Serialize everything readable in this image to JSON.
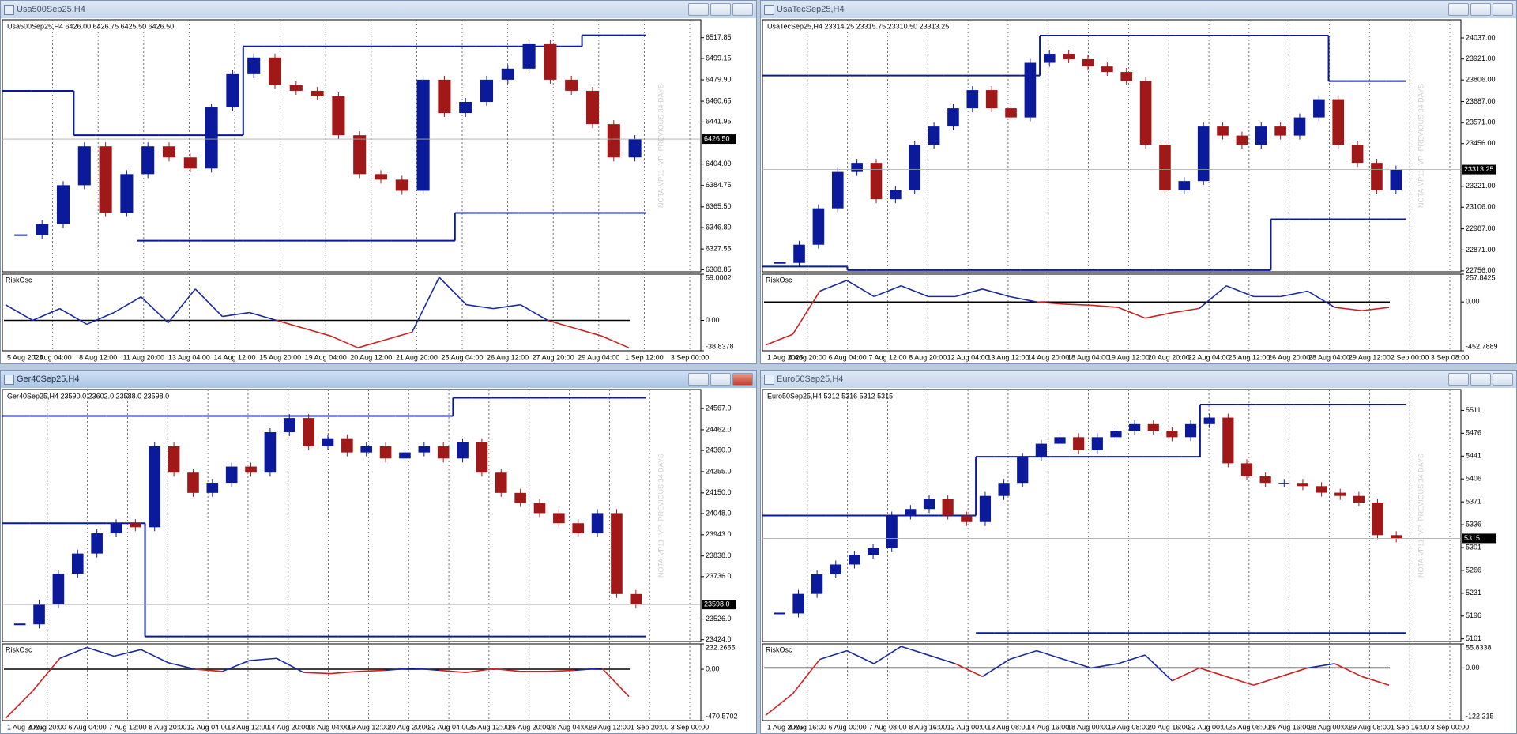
{
  "windows": [
    {
      "title": "Usa500Sep25,H4",
      "active": false,
      "chart_data": {
        "type": "candlestick",
        "header": "Usa500Sep25,H4  6426.00 6426.75 6425.50 6426.50",
        "up_color": "#0a1a9a",
        "down_color": "#a01818",
        "level_color": "#0a1a9a",
        "closes": [
          6340,
          6350,
          6385,
          6420,
          6360,
          6395,
          6420,
          6410,
          6400,
          6455,
          6485,
          6500,
          6475,
          6470,
          6465,
          6430,
          6395,
          6390,
          6380,
          6480,
          6450,
          6460,
          6480,
          6490,
          6512,
          6480,
          6470,
          6440,
          6410,
          6426.5
        ],
        "level_upper": [
          6470,
          6470,
          6470,
          6430,
          6430,
          6430,
          6430,
          6430,
          6430,
          6430,
          6430,
          6510,
          6510,
          6510,
          6510,
          6510,
          6510,
          6510,
          6510,
          6510,
          6510,
          6510,
          6510,
          6510,
          6510,
          6510,
          6510,
          6520,
          6520,
          6520
        ],
        "level_lower": [
          null,
          null,
          null,
          null,
          null,
          null,
          6335,
          6335,
          6335,
          6335,
          6335,
          6335,
          6335,
          6335,
          6335,
          6335,
          6335,
          6335,
          6335,
          6335,
          6335,
          6360,
          6360,
          6360,
          6360,
          6360,
          6360,
          6360,
          6360,
          6360
        ],
        "ylim": [
          6307,
          6534
        ],
        "yticks": [
          6308.85,
          6327.55,
          {
            "value": 6346.8,
            "label": "6346.80"
          },
          {
            "value": 6365.5,
            "label": "6365.50"
          },
          6384.75,
          {
            "value": 6404,
            "label": "6404.00"
          },
          6441.95,
          6460.65,
          {
            "value": 6479.9,
            "label": "6479.90"
          },
          6499.15,
          6517.85
        ],
        "price_label": {
          "value": 6426.5,
          "label": "6426.50"
        },
        "time_labels": [
          "5 Aug 2025",
          "7 Aug 04:00",
          "8 Aug 12:00",
          "11 Aug 20:00",
          "13 Aug 04:00",
          "14 Aug 12:00",
          "15 Aug 20:00",
          "19 Aug 04:00",
          "20 Aug 12:00",
          "21 Aug 20:00",
          "25 Aug 04:00",
          "26 Aug 12:00",
          "27 Aug 20:00",
          "29 Aug 04:00",
          "1 Sep 12:00",
          "3 Sep 00:00"
        ],
        "watermark": "NOTA-VP11 -VP- PREVIOUS 34 DAYS",
        "indicator": {
          "name": "RiskOsc",
          "values": [
            20,
            0,
            15,
            -5,
            10,
            30,
            -3,
            40,
            5,
            10,
            0,
            -10,
            -20,
            -35,
            -25,
            -15,
            55,
            20,
            15,
            20,
            0,
            -10,
            -20,
            -35
          ],
          "ylim": [
            -38.8378,
            59.0002
          ],
          "yticks": [
            59.0002,
            {
              "value": 0,
              "label": "0.00"
            },
            -38.8378
          ]
        }
      }
    },
    {
      "title": "UsaTecSep25,H4",
      "active": false,
      "chart_data": {
        "type": "candlestick",
        "header": "UsaTecSep25,H4  23314.25 23315.75 23310.50 23313.25",
        "up_color": "#0a1a9a",
        "down_color": "#a01818",
        "level_color": "#0a1a9a",
        "closes": [
          22800,
          22900,
          23100,
          23300,
          23350,
          23150,
          23200,
          23450,
          23550,
          23650,
          23750,
          23650,
          23600,
          23900,
          23950,
          23920,
          23880,
          23850,
          23800,
          23450,
          23200,
          23250,
          23550,
          23500,
          23450,
          23550,
          23500,
          23600,
          23700,
          23450,
          23350,
          23200,
          23313.25
        ],
        "level_upper": [
          23830,
          23830,
          23830,
          23830,
          23830,
          23830,
          23830,
          23830,
          23830,
          23830,
          23830,
          23830,
          23830,
          23830,
          24050,
          24050,
          24050,
          24050,
          24050,
          24050,
          24050,
          24050,
          24050,
          24050,
          24050,
          24050,
          24050,
          24050,
          24050,
          23800,
          23800,
          23800,
          23800
        ],
        "level_lower": [
          22780,
          22780,
          22780,
          22780,
          22760,
          22760,
          22760,
          22760,
          22760,
          22760,
          22760,
          22760,
          22760,
          22760,
          22760,
          22760,
          22760,
          22760,
          22760,
          22760,
          22760,
          22760,
          22760,
          22760,
          22760,
          22760,
          23040,
          23040,
          23040,
          23040,
          23040,
          23040,
          23040
        ],
        "ylim": [
          22751,
          24137
        ],
        "yticks": [
          {
            "value": 22756,
            "label": "22756.00"
          },
          {
            "value": 22871,
            "label": "22871.00"
          },
          {
            "value": 22987,
            "label": "22987.00"
          },
          {
            "value": 23106,
            "label": "23106.00"
          },
          {
            "value": 23221,
            "label": "23221.00"
          },
          {
            "value": 23456,
            "label": "23456.00"
          },
          {
            "value": 23571,
            "label": "23571.00"
          },
          {
            "value": 23687,
            "label": "23687.00"
          },
          {
            "value": 23806,
            "label": "23806.00"
          },
          {
            "value": 23921,
            "label": "23921.00"
          },
          {
            "value": 24037,
            "label": "24037.00"
          }
        ],
        "price_label": {
          "value": 23313.25,
          "label": "23313.25"
        },
        "time_labels": [
          "1 Aug 2025",
          "4 Aug 20:00",
          "6 Aug 04:00",
          "7 Aug 12:00",
          "8 Aug 20:00",
          "12 Aug 04:00",
          "13 Aug 12:00",
          "14 Aug 20:00",
          "18 Aug 04:00",
          "19 Aug 12:00",
          "20 Aug 20:00",
          "22 Aug 04:00",
          "25 Aug 12:00",
          "26 Aug 20:00",
          "28 Aug 04:00",
          "29 Aug 12:00",
          "2 Sep 00:00",
          "3 Sep 08:00"
        ],
        "watermark": "NOTA-VP11 -VP- PREVIOUS 34 DAYS",
        "indicator": {
          "name": "RiskOsc",
          "values": [
            -400,
            -300,
            100,
            200,
            50,
            150,
            50,
            50,
            120,
            50,
            0,
            -20,
            -30,
            -50,
            -150,
            -100,
            -60,
            150,
            50,
            50,
            100,
            -50,
            -80,
            -50
          ],
          "ylim": [
            -452.7889,
            257.8425
          ],
          "yticks": [
            257.8425,
            {
              "value": 0,
              "label": "0.00"
            },
            -452.7889
          ]
        }
      }
    },
    {
      "title": "Ger40Sep25,H4",
      "active": true,
      "chart_data": {
        "type": "candlestick",
        "header": "Ger40Sep25,H4  23590.0 23602.0 23588.0 23598.0",
        "up_color": "#0a1a9a",
        "down_color": "#a01818",
        "level_color": "#0a1a9a",
        "closes": [
          23500,
          23600,
          23750,
          23850,
          23950,
          24000,
          23980,
          24380,
          24250,
          24150,
          24200,
          24280,
          24250,
          24450,
          24520,
          24380,
          24420,
          24350,
          24380,
          24320,
          24350,
          24380,
          24320,
          24400,
          24250,
          24150,
          24100,
          24050,
          24000,
          23950,
          24050,
          23650,
          23598
        ],
        "level_upper": [
          24530,
          24530,
          24530,
          24530,
          24530,
          24530,
          24530,
          24530,
          24530,
          24530,
          24530,
          24530,
          24530,
          24530,
          24530,
          24530,
          24530,
          24530,
          24530,
          24530,
          24530,
          24530,
          24530,
          24620,
          24620,
          24620,
          24620,
          24620,
          24620,
          24620,
          24620,
          24620,
          24620
        ],
        "level_lower": [
          24000,
          24000,
          24000,
          24000,
          24000,
          24000,
          24000,
          23440,
          23440,
          23440,
          23440,
          23440,
          23440,
          23440,
          23440,
          23440,
          23440,
          23440,
          23440,
          23440,
          23440,
          23440,
          23440,
          23440,
          23440,
          23440,
          23440,
          23440,
          23440,
          23440,
          23440,
          23440,
          23440
        ],
        "ylim": [
          23415,
          24661
        ],
        "yticks": [
          {
            "value": 23424,
            "label": "23424.0"
          },
          {
            "value": 23526,
            "label": "23526.0"
          },
          {
            "value": 23736,
            "label": "23736.0"
          },
          {
            "value": 23838,
            "label": "23838.0"
          },
          {
            "value": 23943,
            "label": "23943.0"
          },
          {
            "value": 24048,
            "label": "24048.0"
          },
          {
            "value": 24150,
            "label": "24150.0"
          },
          {
            "value": 24255,
            "label": "24255.0"
          },
          {
            "value": 24360,
            "label": "24360.0"
          },
          {
            "value": 24462,
            "label": "24462.0"
          },
          {
            "value": 24567,
            "label": "24567.0"
          }
        ],
        "price_label": {
          "value": 23598,
          "label": "23598.0"
        },
        "time_labels": [
          "1 Aug 2025",
          "4 Aug 20:00",
          "6 Aug 04:00",
          "7 Aug 12:00",
          "8 Aug 20:00",
          "12 Aug 04:00",
          "13 Aug 12:00",
          "14 Aug 20:00",
          "18 Aug 04:00",
          "19 Aug 12:00",
          "20 Aug 20:00",
          "22 Aug 04:00",
          "25 Aug 12:00",
          "26 Aug 20:00",
          "28 Aug 04:00",
          "29 Aug 12:00",
          "1 Sep 20:00",
          "3 Sep 00:00"
        ],
        "watermark": "NOTA-VP11 -VP- PREVIOUS 34 DAYS",
        "indicator": {
          "name": "RiskOsc",
          "values": [
            -450,
            -200,
            100,
            200,
            120,
            180,
            60,
            0,
            -20,
            80,
            100,
            -30,
            -40,
            -20,
            -10,
            10,
            -10,
            -30,
            5,
            -20,
            -20,
            -10,
            10,
            -250
          ],
          "ylim": [
            -470.5702,
            232.2655
          ],
          "yticks": [
            232.2655,
            {
              "value": 0,
              "label": "0.00"
            },
            -470.5702
          ]
        }
      }
    },
    {
      "title": "Euro50Sep25,H4",
      "active": false,
      "chart_data": {
        "type": "candlestick",
        "header": "Euro50Sep25,H4  5312 5316 5312 5315",
        "up_color": "#0a1a9a",
        "down_color": "#a01818",
        "level_color": "#0a1a9a",
        "closes": [
          5200,
          5230,
          5260,
          5275,
          5290,
          5300,
          5350,
          5360,
          5375,
          5350,
          5340,
          5380,
          5400,
          5440,
          5460,
          5470,
          5450,
          5470,
          5480,
          5490,
          5480,
          5470,
          5490,
          5500,
          5430,
          5410,
          5400,
          5400,
          5395,
          5385,
          5380,
          5370,
          5320,
          5315
        ],
        "level_upper": [
          5350,
          5350,
          5350,
          5350,
          5350,
          5350,
          5350,
          5350,
          5350,
          5350,
          5350,
          5440,
          5440,
          5440,
          5440,
          5440,
          5440,
          5440,
          5440,
          5440,
          5440,
          5440,
          5440,
          5520,
          5520,
          5520,
          5520,
          5520,
          5520,
          5520,
          5520,
          5520,
          5520,
          5520
        ],
        "level_lower": [
          null,
          null,
          null,
          null,
          null,
          null,
          null,
          null,
          null,
          null,
          null,
          5170,
          5170,
          5170,
          5170,
          5170,
          5170,
          5170,
          5170,
          5170,
          5170,
          5170,
          5170,
          5170,
          5170,
          5170,
          5170,
          5170,
          5170,
          5170,
          5170,
          5170,
          5170,
          5170
        ],
        "ylim": [
          5157,
          5543
        ],
        "yticks": [
          5161,
          5196,
          5231,
          5266,
          5301,
          5336,
          5371,
          5406,
          5441,
          5476,
          5511
        ],
        "price_label": {
          "value": 5315,
          "label": "5315"
        },
        "time_labels": [
          "1 Aug 2025",
          "4 Aug 16:00",
          "6 Aug 00:00",
          "7 Aug 08:00",
          "8 Aug 16:00",
          "12 Aug 00:00",
          "13 Aug 08:00",
          "14 Aug 16:00",
          "18 Aug 00:00",
          "19 Aug 08:00",
          "20 Aug 16:00",
          "22 Aug 00:00",
          "25 Aug 08:00",
          "26 Aug 16:00",
          "28 Aug 00:00",
          "29 Aug 08:00",
          "1 Sep 16:00",
          "3 Sep 00:00"
        ],
        "watermark": "NOTA-VP11 -VP- PREVIOUS 34 DAYS",
        "indicator": {
          "name": "RiskOsc",
          "values": [
            -110,
            -60,
            20,
            40,
            10,
            50,
            30,
            10,
            -20,
            20,
            40,
            20,
            0,
            10,
            30,
            -30,
            0,
            -20,
            -40,
            -20,
            0,
            10,
            -20,
            -40
          ],
          "ylim": [
            -122.215,
            55.8338
          ],
          "yticks": [
            55.8338,
            {
              "value": 0,
              "label": "0.00"
            },
            -122.215
          ]
        }
      }
    }
  ]
}
